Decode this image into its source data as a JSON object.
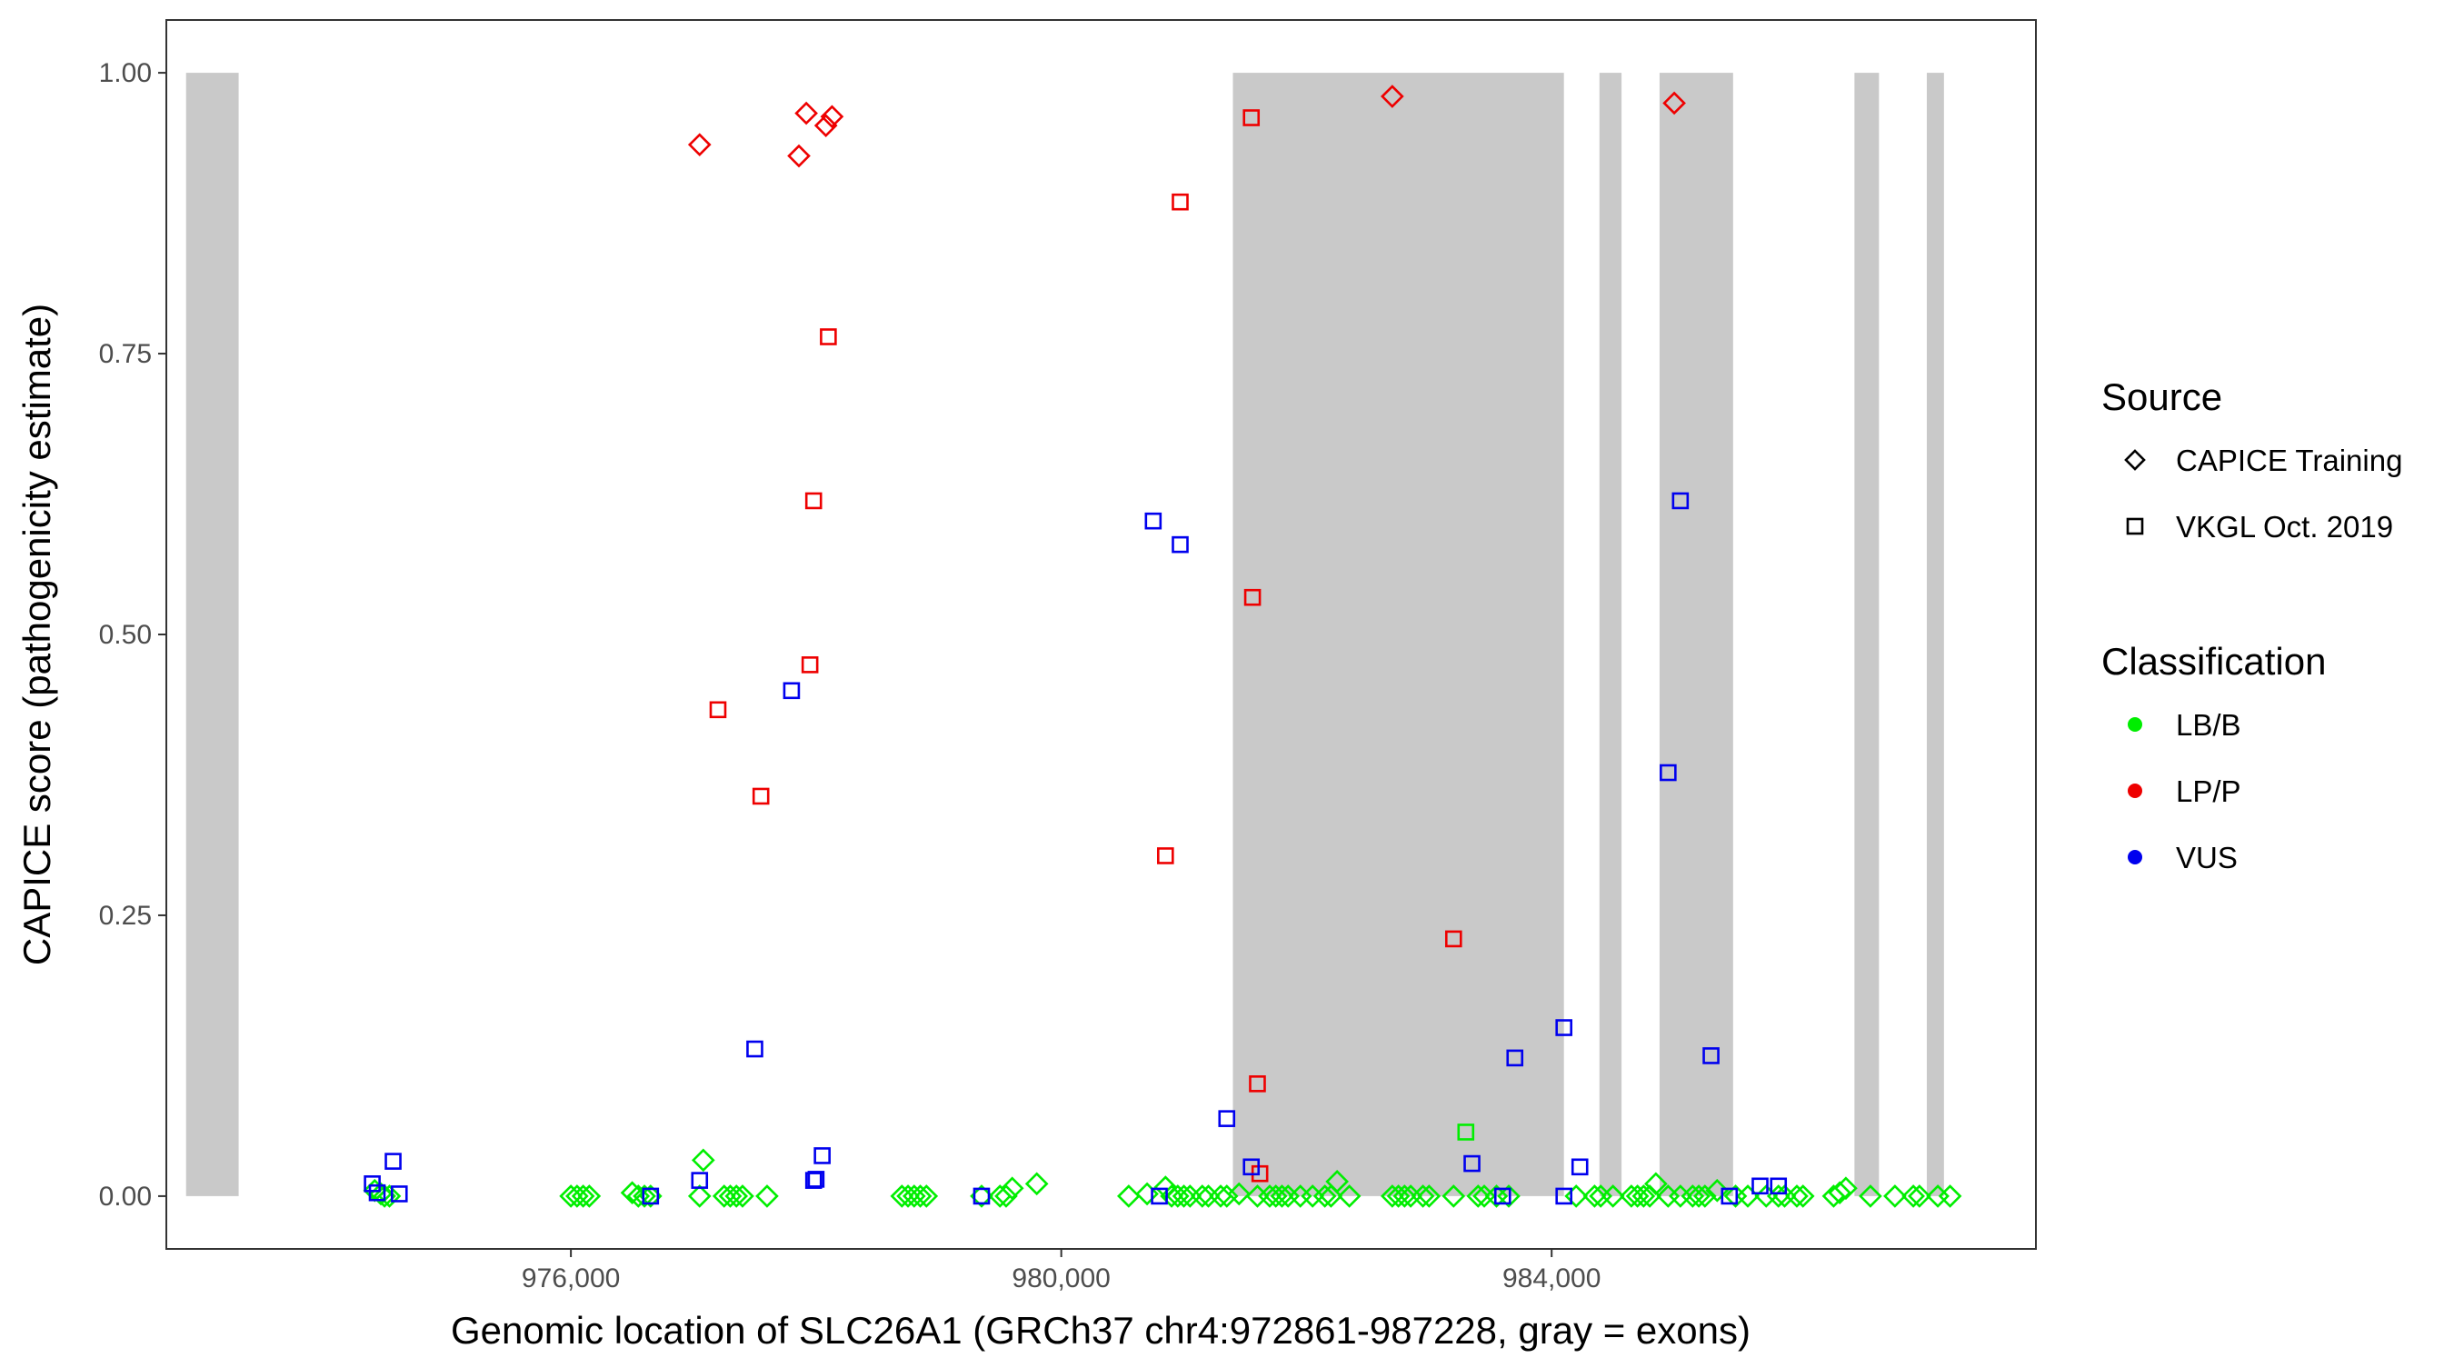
{
  "chart_data": {
    "type": "scatter",
    "title": "",
    "xlabel": "Genomic location of SLC26A1 (GRCh37 chr4:972861-987228, gray = exons)",
    "ylabel": "CAPICE score (pathogenicity estimate)",
    "xlim": [
      972700,
      987950
    ],
    "ylim": [
      -0.047,
      1.047
    ],
    "x_ticks": [
      976000,
      980000,
      984000
    ],
    "x_tick_labels": [
      "976,000",
      "980,000",
      "984,000"
    ],
    "y_ticks": [
      0,
      0.25,
      0.5,
      0.75,
      1.0
    ],
    "y_tick_labels": [
      "0.00",
      "0.25",
      "0.50",
      "0.75",
      "1.00"
    ],
    "grid": false,
    "legend_placement": "right",
    "exons": [
      {
        "start": 972861,
        "end": 973290
      },
      {
        "start": 981400,
        "end": 984100
      },
      {
        "start": 984390,
        "end": 984570
      },
      {
        "start": 984880,
        "end": 985480
      },
      {
        "start": 986470,
        "end": 986670
      },
      {
        "start": 987060,
        "end": 987200
      }
    ],
    "legends": {
      "source": {
        "title": "Source",
        "items": [
          {
            "label": "CAPICE Training",
            "shape": "diamond"
          },
          {
            "label": "VKGL Oct. 2019",
            "shape": "square"
          }
        ]
      },
      "classification": {
        "title": "Classification",
        "items": [
          {
            "label": "LB/B",
            "color": "#00ee00"
          },
          {
            "label": "LP/P",
            "color": "#ee0000"
          },
          {
            "label": "VUS",
            "color": "#0000ee"
          }
        ]
      }
    },
    "series": [
      {
        "shape": "diamond",
        "classification": "LB/B",
        "points": [
          [
            974400,
            0.005
          ],
          [
            974450,
            0.002
          ],
          [
            974480,
            0.0
          ],
          [
            974520,
            0.0
          ],
          [
            976000,
            0.0
          ],
          [
            976050,
            0.0
          ],
          [
            976100,
            0.0
          ],
          [
            976150,
            0.0
          ],
          [
            976500,
            0.003
          ],
          [
            976550,
            0.0
          ],
          [
            976600,
            0.0
          ],
          [
            976650,
            0.0
          ],
          [
            977050,
            0.0
          ],
          [
            977080,
            0.032
          ],
          [
            977250,
            0.0
          ],
          [
            977300,
            0.0
          ],
          [
            977350,
            0.0
          ],
          [
            977400,
            0.0
          ],
          [
            977600,
            0.0
          ],
          [
            978700,
            0.0
          ],
          [
            978750,
            0.0
          ],
          [
            978800,
            0.0
          ],
          [
            978850,
            0.0
          ],
          [
            978900,
            0.0
          ],
          [
            979350,
            0.0
          ],
          [
            979500,
            0.0
          ],
          [
            979550,
            0.0
          ],
          [
            979600,
            0.007
          ],
          [
            979800,
            0.011
          ],
          [
            980550,
            0.0
          ],
          [
            980700,
            0.002
          ],
          [
            980850,
            0.008
          ],
          [
            980900,
            0.0
          ],
          [
            980950,
            0.0
          ],
          [
            981000,
            0.0
          ],
          [
            981050,
            0.0
          ],
          [
            981150,
            0.0
          ],
          [
            981200,
            0.0
          ],
          [
            981300,
            0.0
          ],
          [
            981350,
            0.0
          ],
          [
            981450,
            0.002
          ],
          [
            981600,
            0.0
          ],
          [
            981700,
            0.0
          ],
          [
            981750,
            0.0
          ],
          [
            981800,
            0.0
          ],
          [
            981850,
            0.0
          ],
          [
            981950,
            0.0
          ],
          [
            982050,
            0.0
          ],
          [
            982150,
            0.0
          ],
          [
            982200,
            0.0
          ],
          [
            982250,
            0.013
          ],
          [
            982350,
            0.0
          ],
          [
            982700,
            0.0
          ],
          [
            982750,
            0.0
          ],
          [
            982800,
            0.0
          ],
          [
            982850,
            0.0
          ],
          [
            982950,
            0.0
          ],
          [
            983000,
            0.0
          ],
          [
            983200,
            0.0
          ],
          [
            983400,
            0.0
          ],
          [
            983450,
            0.0
          ],
          [
            983550,
            0.0
          ],
          [
            983650,
            0.0
          ],
          [
            984200,
            0.0
          ],
          [
            984350,
            0.0
          ],
          [
            984400,
            0.0
          ],
          [
            984500,
            0.0
          ],
          [
            984650,
            0.0
          ],
          [
            984700,
            0.0
          ],
          [
            984750,
            0.0
          ],
          [
            984800,
            0.0
          ],
          [
            984850,
            0.011
          ],
          [
            984950,
            0.0
          ],
          [
            985050,
            0.0
          ],
          [
            985150,
            0.0
          ],
          [
            985200,
            0.0
          ],
          [
            985250,
            0.0
          ],
          [
            985350,
            0.005
          ],
          [
            985500,
            0.0
          ],
          [
            985600,
            0.0
          ],
          [
            985750,
            0.0
          ],
          [
            985850,
            0.0
          ],
          [
            985900,
            0.0
          ],
          [
            986000,
            0.0
          ],
          [
            986050,
            0.0
          ],
          [
            986300,
            0.0
          ],
          [
            986350,
            0.003
          ],
          [
            986400,
            0.007
          ],
          [
            986600,
            0.0
          ],
          [
            986800,
            0.0
          ],
          [
            986950,
            0.0
          ],
          [
            987000,
            0.0
          ],
          [
            987150,
            0.0
          ],
          [
            987250,
            0.0
          ]
        ]
      },
      {
        "shape": "diamond",
        "classification": "LP/P",
        "points": [
          [
            977050,
            0.936
          ],
          [
            977860,
            0.926
          ],
          [
            977920,
            0.964
          ],
          [
            978080,
            0.953
          ],
          [
            978130,
            0.961
          ],
          [
            982700,
            0.979
          ],
          [
            985000,
            0.973
          ]
        ]
      },
      {
        "shape": "square",
        "classification": "LB/B",
        "points": [
          [
            983300,
            0.057
          ]
        ]
      },
      {
        "shape": "square",
        "classification": "LP/P",
        "points": [
          [
            977200,
            0.433
          ],
          [
            977550,
            0.356
          ],
          [
            977950,
            0.473
          ],
          [
            977980,
            0.619
          ],
          [
            978100,
            0.765
          ],
          [
            980850,
            0.303
          ],
          [
            980970,
            0.885
          ],
          [
            981550,
            0.96
          ],
          [
            981560,
            0.533
          ],
          [
            981600,
            0.1
          ],
          [
            981620,
            0.02
          ],
          [
            983200,
            0.229
          ]
        ]
      },
      {
        "shape": "square",
        "classification": "VUS",
        "points": [
          [
            974380,
            0.011
          ],
          [
            974420,
            0.003
          ],
          [
            974550,
            0.031
          ],
          [
            974600,
            0.002
          ],
          [
            976650,
            0.0
          ],
          [
            977050,
            0.014
          ],
          [
            977500,
            0.131
          ],
          [
            977800,
            0.45
          ],
          [
            977980,
            0.014
          ],
          [
            978000,
            0.015
          ],
          [
            978050,
            0.036
          ],
          [
            979350,
            0.0
          ],
          [
            980800,
            0.0
          ],
          [
            980750,
            0.601
          ],
          [
            980970,
            0.58
          ],
          [
            981350,
            0.069
          ],
          [
            981550,
            0.026
          ],
          [
            983350,
            0.029
          ],
          [
            983600,
            0.0
          ],
          [
            983700,
            0.123
          ],
          [
            984100,
            0.15
          ],
          [
            984100,
            0.0
          ],
          [
            984230,
            0.026
          ],
          [
            984950,
            0.377
          ],
          [
            985050,
            0.619
          ],
          [
            985300,
            0.125
          ],
          [
            985450,
            0.0
          ],
          [
            985700,
            0.009
          ],
          [
            985850,
            0.009
          ]
        ]
      }
    ]
  }
}
